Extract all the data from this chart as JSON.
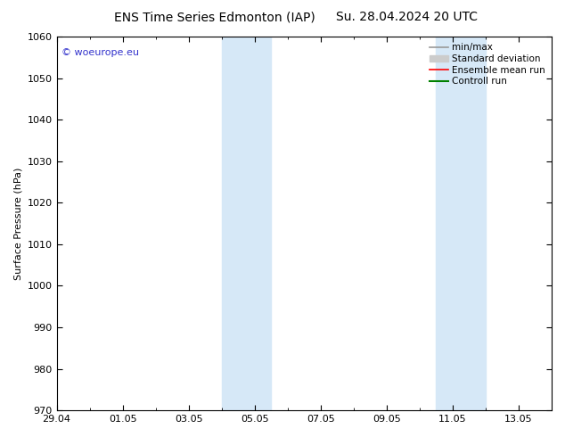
{
  "title_left": "ENS Time Series Edmonton (IAP)",
  "title_right": "Su. 28.04.2024 20 UTC",
  "ylabel": "Surface Pressure (hPa)",
  "ylim": [
    970,
    1060
  ],
  "yticks": [
    970,
    980,
    990,
    1000,
    1010,
    1020,
    1030,
    1040,
    1050,
    1060
  ],
  "xlim": [
    0,
    15
  ],
  "xtick_positions": [
    0,
    2,
    4,
    6,
    8,
    10,
    12,
    14
  ],
  "xtick_labels": [
    "29.04",
    "01.05",
    "03.05",
    "05.05",
    "07.05",
    "09.05",
    "11.05",
    "13.05"
  ],
  "shaded_bands": [
    {
      "x_start": 5.0,
      "x_end": 6.5
    },
    {
      "x_start": 11.5,
      "x_end": 13.0
    }
  ],
  "shaded_color": "#d6e8f7",
  "background_color": "#ffffff",
  "watermark_text": "© woeurope.eu",
  "watermark_color": "#3333cc",
  "legend_items": [
    {
      "label": "min/max",
      "color": "#999999",
      "lw": 1.2,
      "style": "line"
    },
    {
      "label": "Standard deviation",
      "color": "#cccccc",
      "lw": 6,
      "style": "band"
    },
    {
      "label": "Ensemble mean run",
      "color": "#ff0000",
      "lw": 1.2,
      "style": "line"
    },
    {
      "label": "Controll run",
      "color": "#008000",
      "lw": 1.5,
      "style": "line"
    }
  ],
  "title_fontsize": 10,
  "tick_fontsize": 8,
  "ylabel_fontsize": 8,
  "legend_fontsize": 7.5
}
